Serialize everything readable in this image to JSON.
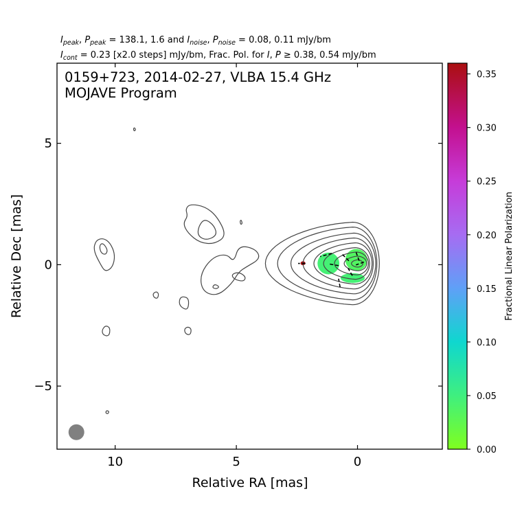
{
  "header": {
    "line1": [
      {
        "t": "I"
      },
      {
        "t": "peak",
        "sub": true
      },
      {
        "t": ", "
      },
      {
        "t": "P"
      },
      {
        "t": "peak",
        "sub": true
      },
      {
        "t": " = 138.1, 1.6 and "
      },
      {
        "t": "I"
      },
      {
        "t": "noise",
        "sub": true
      },
      {
        "t": ", "
      },
      {
        "t": "P"
      },
      {
        "t": "noise",
        "sub": true
      },
      {
        "t": " = 0.08, 0.11 mJy/bm"
      }
    ],
    "line2": [
      {
        "t": "I"
      },
      {
        "t": "cont",
        "sub": true
      },
      {
        "t": " = 0.23 [x2.0 steps] mJy/bm, Frac. Pol. for "
      },
      {
        "t": "I"
      },
      {
        "t": ", "
      },
      {
        "t": "P"
      },
      {
        "t": " ≥ 0.38, 0.54 mJy/bm"
      }
    ]
  },
  "chart_data": {
    "type": "contour",
    "title_line1": "0159+723, 2014-02-27, VLBA 15.4 GHz",
    "title_line2": "MOJAVE Program",
    "xlabel": "Relative RA [mas]",
    "ylabel": "Relative Dec [mas]",
    "xlim": [
      12.4,
      -3.5
    ],
    "ylim": [
      -7.6,
      8.3
    ],
    "xticks": [
      10,
      5,
      0
    ],
    "yticks": [
      5,
      0,
      -5
    ],
    "xtick_labels": [
      "10",
      "5",
      "0"
    ],
    "ytick_labels": [
      "5",
      "0",
      "−5"
    ],
    "contour_color": "#444444",
    "core_contours": [
      {
        "cx": 0.2,
        "cy": 0.05,
        "rx_east": 3.6,
        "rx_west": 1.1,
        "ry": 1.7
      },
      {
        "cx": 0.2,
        "cy": 0.05,
        "rx_east": 3.1,
        "rx_west": 1.0,
        "ry": 1.5
      },
      {
        "cx": 0.15,
        "cy": 0.05,
        "rx_east": 2.6,
        "rx_west": 0.9,
        "ry": 1.25
      },
      {
        "cx": 0.15,
        "cy": 0.05,
        "rx_east": 2.1,
        "rx_west": 0.8,
        "ry": 1.05
      },
      {
        "cx": 0.1,
        "cy": 0.05,
        "rx_east": 1.7,
        "rx_west": 0.7,
        "ry": 0.85
      },
      {
        "cx": 0.1,
        "cy": 0.05,
        "rx_east": 1.3,
        "rx_west": 0.6,
        "ry": 0.65
      },
      {
        "cx": 0.05,
        "cy": 0.05,
        "rx_east": 0.9,
        "rx_west": 0.5,
        "ry": 0.47
      },
      {
        "cx": 0.0,
        "cy": 0.05,
        "rx_east": 0.55,
        "rx_west": 0.38,
        "ry": 0.3
      },
      {
        "cx": 0.0,
        "cy": 0.05,
        "rx_east": 0.25,
        "rx_west": 0.22,
        "ry": 0.15
      }
    ],
    "blobs": [
      {
        "name": "jet-knot-north",
        "pts": [
          [
            6.9,
            2.5
          ],
          [
            6.3,
            2.4
          ],
          [
            5.8,
            2.0
          ],
          [
            5.4,
            1.2
          ],
          [
            5.9,
            0.85
          ],
          [
            6.5,
            0.9
          ],
          [
            7.0,
            1.3
          ],
          [
            7.2,
            1.7
          ],
          [
            7.0,
            2.0
          ],
          [
            7.1,
            2.3
          ]
        ]
      },
      {
        "name": "jet-knot-north-hole",
        "pts": [
          [
            6.3,
            1.9
          ],
          [
            5.9,
            1.6
          ],
          [
            5.8,
            1.2
          ],
          [
            6.25,
            1.0
          ],
          [
            6.6,
            1.2
          ],
          [
            6.55,
            1.6
          ]
        ]
      },
      {
        "name": "jet-knot-middle",
        "pts": [
          [
            4.9,
            0.8
          ],
          [
            4.2,
            0.65
          ],
          [
            4.0,
            0.25
          ],
          [
            4.6,
            -0.1
          ],
          [
            4.9,
            -0.3
          ],
          [
            5.2,
            -0.8
          ],
          [
            5.8,
            -1.3
          ],
          [
            6.4,
            -1.1
          ],
          [
            6.5,
            -0.4
          ],
          [
            6.0,
            0.3
          ],
          [
            5.4,
            0.45
          ],
          [
            5.1,
            0.1
          ]
        ]
      },
      {
        "name": "jet-knot-middle-hole-a",
        "pts": [
          [
            4.9,
            -0.3
          ],
          [
            4.6,
            -0.5
          ],
          [
            4.7,
            -0.7
          ],
          [
            5.1,
            -0.6
          ],
          [
            5.2,
            -0.4
          ]
        ]
      },
      {
        "name": "jet-knot-middle-hole-b",
        "pts": [
          [
            5.9,
            -0.8
          ],
          [
            5.7,
            -0.9
          ],
          [
            5.8,
            -1.0
          ],
          [
            6.0,
            -0.95
          ]
        ]
      },
      {
        "name": "outer-blob-east",
        "pts": [
          [
            10.5,
            1.1
          ],
          [
            10.2,
            0.9
          ],
          [
            10.0,
            0.4
          ],
          [
            10.1,
            -0.1
          ],
          [
            10.4,
            -0.3
          ],
          [
            10.6,
            0.0
          ],
          [
            10.9,
            0.6
          ],
          [
            10.8,
            1.0
          ]
        ]
      },
      {
        "name": "outer-blob-east-hole",
        "pts": [
          [
            10.5,
            0.9
          ],
          [
            10.3,
            0.6
          ],
          [
            10.4,
            0.4
          ],
          [
            10.6,
            0.5
          ],
          [
            10.65,
            0.8
          ]
        ]
      },
      {
        "name": "knot-small-a",
        "pts": [
          [
            8.3,
            -1.1
          ],
          [
            8.2,
            -1.2
          ],
          [
            8.25,
            -1.4
          ],
          [
            8.4,
            -1.35
          ],
          [
            8.45,
            -1.2
          ]
        ]
      },
      {
        "name": "knot-small-b",
        "pts": [
          [
            7.2,
            -1.3
          ],
          [
            6.95,
            -1.4
          ],
          [
            7.0,
            -1.9
          ],
          [
            7.35,
            -1.7
          ],
          [
            7.35,
            -1.4
          ]
        ]
      },
      {
        "name": "knot-small-c",
        "pts": [
          [
            10.4,
            -2.5
          ],
          [
            10.2,
            -2.6
          ],
          [
            10.25,
            -2.95
          ],
          [
            10.5,
            -2.9
          ],
          [
            10.55,
            -2.7
          ]
        ]
      },
      {
        "name": "knot-small-d",
        "pts": [
          [
            7.0,
            -2.55
          ],
          [
            6.85,
            -2.65
          ],
          [
            6.9,
            -2.9
          ],
          [
            7.1,
            -2.85
          ],
          [
            7.15,
            -2.65
          ]
        ]
      },
      {
        "name": "knot-tiny-e",
        "pts": [
          [
            10.35,
            -6.0
          ],
          [
            10.25,
            -6.05
          ],
          [
            10.3,
            -6.15
          ],
          [
            10.4,
            -6.1
          ]
        ]
      },
      {
        "name": "knot-tiny-f",
        "pts": [
          [
            9.2,
            5.65
          ],
          [
            9.15,
            5.55
          ],
          [
            9.22,
            5.5
          ],
          [
            9.25,
            5.6
          ]
        ]
      },
      {
        "name": "knot-tiny-g",
        "pts": [
          [
            4.8,
            1.85
          ],
          [
            4.75,
            1.7
          ],
          [
            4.82,
            1.65
          ],
          [
            4.85,
            1.8
          ]
        ]
      }
    ],
    "polarization_patches": [
      {
        "cx": 1.2,
        "cy": 0.05,
        "rx": 0.45,
        "ry": 0.45,
        "frac": 0.045
      },
      {
        "cx": 0.05,
        "cy": 0.2,
        "rx": 0.45,
        "ry": 0.45,
        "frac": 0.035
      },
      {
        "cx": 0.2,
        "cy": -0.55,
        "rx": 0.5,
        "ry": 0.2,
        "frac": 0.045
      },
      {
        "cx": 2.25,
        "cy": 0.06,
        "rx": 0.1,
        "ry": 0.08,
        "frac": 0.36
      }
    ],
    "evpa_ticks": [
      {
        "x": 1.3,
        "y": 0.4,
        "angle": -15,
        "len": 0.5
      },
      {
        "x": 1.0,
        "y": 0.0,
        "angle": 10,
        "len": 0.45
      },
      {
        "x": 0.5,
        "y": 0.3,
        "angle": 45,
        "len": 0.4
      },
      {
        "x": 0.0,
        "y": 0.35,
        "angle": 70,
        "len": 0.4
      },
      {
        "x": -0.1,
        "y": 0.05,
        "angle": -20,
        "len": 0.35
      },
      {
        "x": 0.3,
        "y": -0.3,
        "angle": 60,
        "len": 0.35
      },
      {
        "x": 0.75,
        "y": -0.75,
        "angle": 80,
        "len": 0.35
      },
      {
        "x": 2.3,
        "y": 0.05,
        "angle": 0,
        "len": 0.3
      }
    ],
    "beam": {
      "x": 11.6,
      "y": -6.9,
      "diameter_mas": 0.65,
      "color": "#808080"
    },
    "colorbar": {
      "label": "Fractional Linear Polarization",
      "range": [
        0.0,
        0.36
      ],
      "ticks": [
        0.0,
        0.05,
        0.1,
        0.15,
        0.2,
        0.25,
        0.3,
        0.35
      ],
      "tick_labels": [
        "0.00",
        "0.05",
        "0.10",
        "0.15",
        "0.20",
        "0.25",
        "0.30",
        "0.35"
      ],
      "stops": [
        {
          "v": 0.0,
          "color": "#7fff1f"
        },
        {
          "v": 0.05,
          "color": "#3fef7f"
        },
        {
          "v": 0.1,
          "color": "#0fd7cf"
        },
        {
          "v": 0.15,
          "color": "#5fa0f7"
        },
        {
          "v": 0.2,
          "color": "#a66cf2"
        },
        {
          "v": 0.25,
          "color": "#c63cd9"
        },
        {
          "v": 0.3,
          "color": "#c3108f"
        },
        {
          "v": 0.36,
          "color": "#aa0f10"
        }
      ]
    }
  }
}
